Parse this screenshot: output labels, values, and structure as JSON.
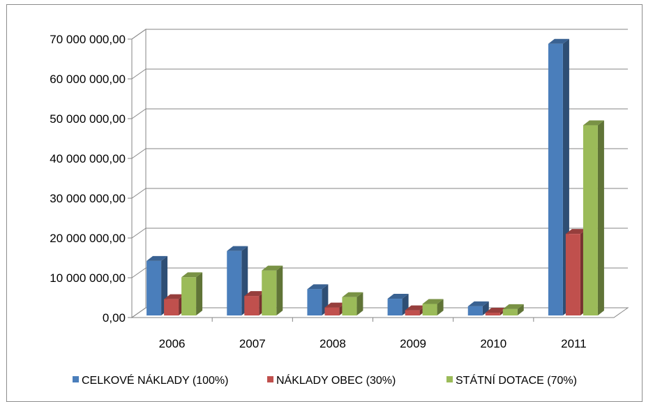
{
  "chart_data": {
    "type": "bar",
    "categories": [
      "2006",
      "2007",
      "2008",
      "2009",
      "2010",
      "2011"
    ],
    "series": [
      {
        "name": "CELKOVÉ NÁKLADY (100%)",
        "color": "#4a7ebb",
        "values": [
          13700000,
          16200000,
          6600000,
          4200000,
          2300000,
          68300000
        ]
      },
      {
        "name": "NÁKLADY OBEC (30%)",
        "color": "#c0504d",
        "values": [
          4100000,
          4900000,
          2000000,
          1300000,
          700000,
          20500000
        ]
      },
      {
        "name": "STÁTNÍ DOTACE (70%)",
        "color": "#9bbb59",
        "values": [
          9600000,
          11300000,
          4600000,
          2900000,
          1600000,
          47800000
        ]
      }
    ],
    "ylim": [
      0,
      70000000
    ],
    "yticks": [
      "0,00",
      "10 000 000,00",
      "20 000 000,00",
      "30 000 000,00",
      "40 000 000,00",
      "50 000 000,00",
      "60 000 000,00",
      "70 000 000,00"
    ],
    "grid": true,
    "legend_position": "bottom",
    "style": "3d-clustered-bar"
  }
}
